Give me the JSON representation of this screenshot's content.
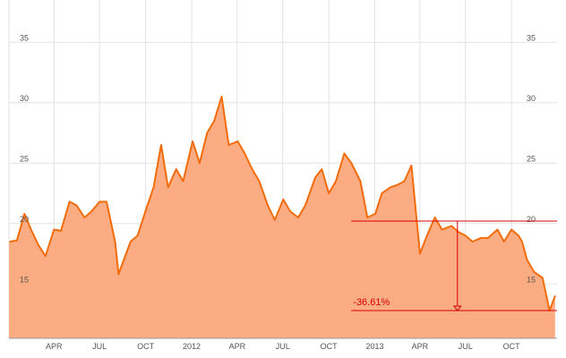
{
  "chart_data": {
    "type": "area",
    "y_ticks": [
      "15",
      "20",
      "25",
      "30",
      "35"
    ],
    "x_ticks": [
      "APR",
      "JUL",
      "OCT",
      "2012",
      "APR",
      "JUL",
      "OCT",
      "2013",
      "APR",
      "JUL",
      "OCT"
    ],
    "grid": true,
    "colors": {
      "fill": "#fbac82",
      "line": "#f26c0c",
      "annotation": "#d40000",
      "grid": "#e3e3e3"
    },
    "change_annotation": {
      "label": "-36.61%",
      "start_value": 20.2,
      "end_value": 12.8
    },
    "x_range": [
      "2011-01-01",
      "2013-12-31"
    ],
    "ylim": [
      10.5,
      38.5
    ],
    "x": [
      "2011-01-03",
      "2011-01-17",
      "2011-02-01",
      "2011-02-14",
      "2011-03-01",
      "2011-03-15",
      "2011-04-01",
      "2011-04-15",
      "2011-05-02",
      "2011-05-16",
      "2011-06-01",
      "2011-06-15",
      "2011-07-01",
      "2011-07-15",
      "2011-08-01",
      "2011-08-08",
      "2011-08-15",
      "2011-09-01",
      "2011-09-15",
      "2011-10-03",
      "2011-10-17",
      "2011-11-01",
      "2011-11-15",
      "2011-12-01",
      "2011-12-15",
      "2012-01-03",
      "2012-01-17",
      "2012-02-01",
      "2012-02-15",
      "2012-03-01",
      "2012-03-15",
      "2012-04-02",
      "2012-04-16",
      "2012-05-01",
      "2012-05-15",
      "2012-06-01",
      "2012-06-15",
      "2012-07-02",
      "2012-07-16",
      "2012-08-01",
      "2012-08-15",
      "2012-09-04",
      "2012-09-17",
      "2012-10-01",
      "2012-10-15",
      "2012-11-01",
      "2012-11-15",
      "2012-12-03",
      "2012-12-17",
      "2013-01-02",
      "2013-01-15",
      "2013-02-01",
      "2013-02-15",
      "2013-03-01",
      "2013-03-15",
      "2013-04-01",
      "2013-04-15",
      "2013-05-01",
      "2013-05-15",
      "2013-06-03",
      "2013-06-17",
      "2013-07-01",
      "2013-07-15",
      "2013-08-01",
      "2013-08-15",
      "2013-09-03",
      "2013-09-16",
      "2013-10-01",
      "2013-10-15",
      "2013-10-22",
      "2013-11-01",
      "2013-11-15",
      "2013-12-02",
      "2013-12-16",
      "2013-12-27"
    ],
    "values": [
      18.5,
      18.6,
      20.8,
      19.5,
      18.2,
      17.3,
      19.5,
      19.4,
      21.8,
      21.5,
      20.5,
      21.0,
      21.8,
      21.8,
      18.5,
      15.8,
      16.6,
      18.5,
      19.0,
      21.3,
      23.0,
      26.5,
      23.0,
      24.5,
      23.5,
      26.8,
      25.0,
      27.5,
      28.5,
      30.5,
      26.5,
      26.8,
      25.8,
      24.5,
      23.5,
      21.5,
      20.3,
      22.0,
      21.0,
      20.5,
      21.5,
      23.8,
      24.5,
      22.5,
      23.5,
      25.8,
      25.0,
      23.5,
      20.5,
      20.8,
      22.5,
      23.0,
      23.2,
      23.5,
      24.8,
      17.5,
      19.0,
      20.5,
      19.5,
      19.8,
      19.3,
      19.0,
      18.5,
      18.8,
      18.8,
      19.5,
      18.5,
      19.5,
      19.0,
      18.5,
      17.0,
      16.0,
      15.5,
      12.8,
      14.0
    ]
  }
}
